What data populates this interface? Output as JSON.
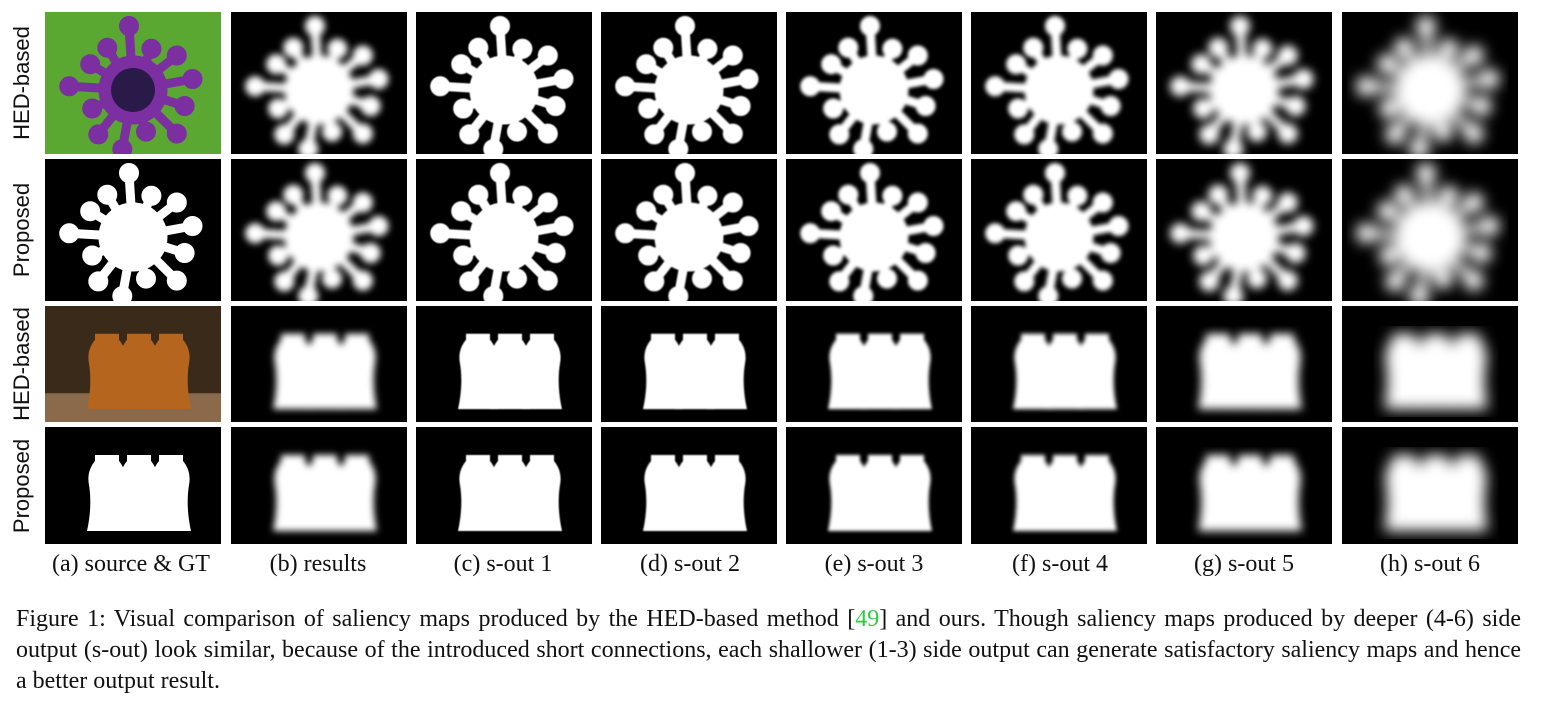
{
  "figure": {
    "row_labels": [
      "HED-based",
      "Proposed",
      "HED-based",
      "Proposed"
    ],
    "columns": [
      "(a) source & GT",
      "(b) results",
      "(c) s-out 1",
      "(d) s-out 2",
      "(e) s-out 3",
      "(f) s-out 4",
      "(g) s-out 5",
      "(h) s-out 6"
    ],
    "caption": {
      "lead": "Figure 1:  Visual comparison of saliency maps produced by the HED-based method [",
      "cite": "49",
      "rest": "] and ours.  Though saliency maps produced by deeper (4-6) side output (s-out) look similar, because of the introduced short connections, each shallower (1-3) side output can generate satisfactory saliency maps and hence a better output result."
    },
    "colors": {
      "background": "#000000",
      "foreground": "#ffffff",
      "flower_petal": "#7b2fa0",
      "leaf_green": "#5aa832",
      "jar_amber": "#b5651d",
      "citation": "#2ecc40"
    }
  }
}
